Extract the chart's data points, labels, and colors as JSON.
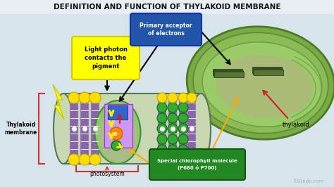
{
  "title": "DEFINITION AND FUNCTION OF THYLAKOID MEMBRANE",
  "title_bg": "#e8eef4",
  "title_color": "#111111",
  "bg_color": "#d8e4ec",
  "label_light_photon": "Light photon\ncontacts the\npigment",
  "label_light_photon_bg": "#ffff00",
  "label_primary_acceptor": "Primary acceptor\nof electrons",
  "label_primary_acceptor_bg": "#2255aa",
  "label_primary_acceptor_color": "#ffffff",
  "label_chlorophyll": "Special chlorophyll molecule\n(P680 ó P700)",
  "label_chlorophyll_bg": "#228822",
  "label_chlorophyll_color": "#ffffff",
  "label_thylakoid_membrane": "Thylakoid\nmembrane",
  "label_photosystem": "photosystem",
  "label_thylakoid": "thylakoid",
  "ball_yellow": "#ffdd00",
  "ball_green": "#33aa33",
  "electron_orange": "#ff8800",
  "protein_color": "#8866aa",
  "arrow_yellow": "#ffee00",
  "arrow_orange": "#ffaa00",
  "arrow_black": "#111111",
  "arrow_red": "#cc2222",
  "bracket_red": "#cc3333",
  "membrane_outer_color": "#aaccaa",
  "membrane_inner_color": "#ccddbb",
  "purple_box_color": "#cc99ee",
  "blue_sq_color": "#3366cc",
  "chloroplast_colors": [
    "#7aaa44",
    "#8abb55",
    "#99cc66",
    "#aabb77"
  ],
  "study_color": "#aaaaaa"
}
